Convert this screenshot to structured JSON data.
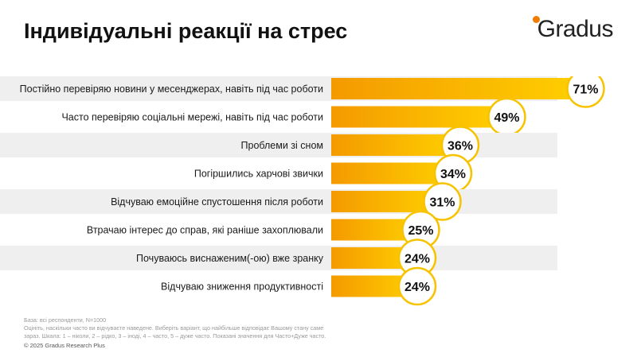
{
  "title": "Індивідуальні реакції на стрес",
  "logo": {
    "text": "Gradus",
    "color": "#f07d00"
  },
  "footnote": {
    "base": "База: всі респонденти, N=1000",
    "question": "Оцініть, наскільки часто ви відчуваєте наведене. Виберіть варіант, що найбільше відповідає Вашому стану саме",
    "scale": "зараз. Шкала: 1 – ніколи, 2 – рідко, 3 – іноді, 4 – часто, 5 – дуже часто. Показані значення для Часто+Дуже часто."
  },
  "copyright": "© 2025 Gradus Research Plus",
  "chart_data": {
    "type": "bar",
    "orientation": "horizontal",
    "categories": [
      "Постійно перевіряю новини у месенджерах, навіть під час роботи",
      "Часто перевіряю соціальні мережі, навіть під час роботи",
      "Проблеми зі сном",
      "Погіршились харчові звички",
      "Відчуваю емоційне спустошення після роботи",
      "Втрачаю інтерес до справ, які раніше захоплювали",
      "Почуваюсь виснаженим(-ою) вже зранку",
      "Відчуваю зниження продуктивності"
    ],
    "values": [
      71,
      49,
      36,
      34,
      31,
      25,
      24,
      24
    ],
    "value_labels": [
      "71%",
      "49%",
      "36%",
      "34%",
      "31%",
      "25%",
      "24%",
      "24%"
    ],
    "xlim": [
      0,
      90
    ],
    "colors": {
      "bar_start": "#f49a00",
      "bar_end": "#ffd000",
      "label_ring": "#f7c300",
      "row_band": "#efefef"
    }
  }
}
